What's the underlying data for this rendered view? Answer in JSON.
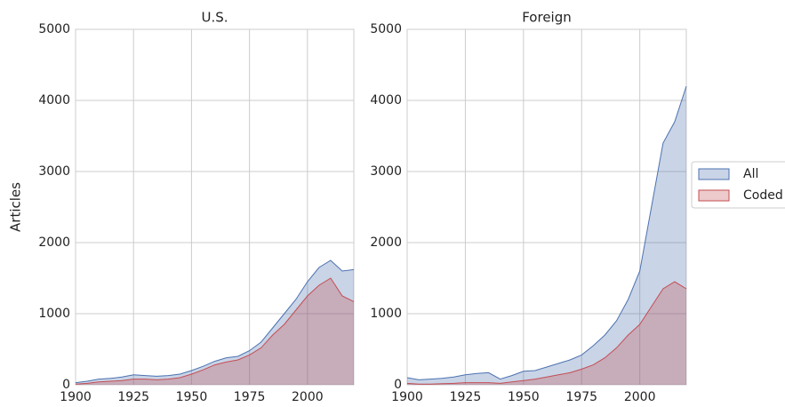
{
  "chart_data": [
    {
      "type": "area",
      "title": "U.S.",
      "ylabel": "Articles",
      "legend": "right",
      "x": [
        1900,
        1905,
        1910,
        1915,
        1920,
        1925,
        1930,
        1935,
        1940,
        1945,
        1950,
        1955,
        1960,
        1965,
        1970,
        1975,
        1980,
        1985,
        1990,
        1995,
        2000,
        2005,
        2010,
        2015,
        2020
      ],
      "series": [
        {
          "name": "All",
          "color": "#4c72b0",
          "values": [
            30,
            50,
            80,
            90,
            110,
            140,
            130,
            120,
            130,
            150,
            200,
            260,
            330,
            380,
            400,
            480,
            600,
            800,
            1000,
            1200,
            1450,
            1650,
            1750,
            1600,
            1620
          ]
        },
        {
          "name": "Coded",
          "color": "#c44e52",
          "values": [
            10,
            20,
            40,
            50,
            60,
            80,
            80,
            70,
            80,
            100,
            150,
            210,
            280,
            320,
            350,
            420,
            520,
            700,
            850,
            1050,
            1250,
            1400,
            1500,
            1250,
            1170
          ]
        }
      ],
      "xlim": [
        1900,
        2020
      ],
      "ylim": [
        0,
        5000
      ],
      "xticks": [
        1900,
        1925,
        1950,
        1975,
        2000
      ],
      "yticks": [
        0,
        1000,
        2000,
        3000,
        4000,
        5000
      ],
      "grid": true
    },
    {
      "type": "area",
      "title": "Foreign",
      "x": [
        1900,
        1905,
        1910,
        1915,
        1920,
        1925,
        1930,
        1935,
        1940,
        1945,
        1950,
        1955,
        1960,
        1965,
        1970,
        1975,
        1980,
        1985,
        1990,
        1995,
        2000,
        2005,
        2010,
        2015,
        2020
      ],
      "series": [
        {
          "name": "All",
          "color": "#4c72b0",
          "values": [
            100,
            70,
            80,
            90,
            110,
            140,
            160,
            170,
            80,
            130,
            190,
            200,
            250,
            300,
            350,
            420,
            550,
            700,
            900,
            1200,
            1600,
            2500,
            3400,
            3700,
            4200
          ]
        },
        {
          "name": "Coded",
          "color": "#c44e52",
          "values": [
            20,
            10,
            10,
            15,
            20,
            30,
            30,
            30,
            20,
            40,
            60,
            80,
            110,
            140,
            170,
            220,
            280,
            380,
            520,
            700,
            850,
            1100,
            1350,
            1450,
            1350
          ]
        }
      ],
      "xlim": [
        1900,
        2020
      ],
      "ylim": [
        0,
        5000
      ],
      "xticks": [
        1900,
        1925,
        1950,
        1975,
        2000
      ],
      "yticks": [
        0,
        1000,
        2000,
        3000,
        4000,
        5000
      ],
      "grid": true
    }
  ]
}
